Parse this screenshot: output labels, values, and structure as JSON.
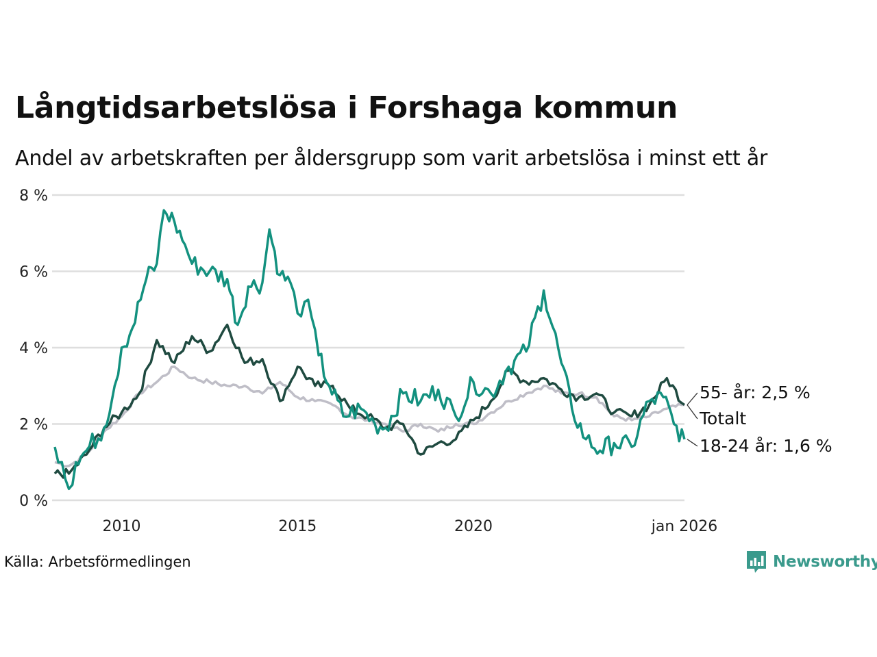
{
  "title": "Långtidsarbetslösa i Forshaga kommun",
  "subtitle": "Andel av arbetskraften per åldersgrupp som varit arbetslösa i minst ett år",
  "source": "Källa: Arbetsförmedlingen",
  "brand": {
    "name": "Newsworthy",
    "icon": "newsworthy-logo-icon"
  },
  "colors": {
    "young": "#13917f",
    "old": "#1f4a40",
    "total": "#bfbec7",
    "grid": "#dedede"
  },
  "chart_data": {
    "type": "line",
    "title": "Långtidsarbetslösa i Forshaga kommun",
    "xlabel": "",
    "ylabel": "",
    "xlim": [
      2008.1,
      2026.0
    ],
    "ylim": [
      0,
      8
    ],
    "yticks": [
      0,
      2,
      4,
      6,
      8
    ],
    "ytick_labels": [
      "0 %",
      "2 %",
      "4 %",
      "6 %",
      "8 %"
    ],
    "xticks": [
      2010,
      2015,
      2020,
      2026.0
    ],
    "xtick_labels": [
      "2010",
      "2015",
      "2020",
      "jan 2026"
    ],
    "grid": true,
    "series": [
      {
        "name": "Totalt",
        "label": "Totalt",
        "key": "total",
        "x": [
          2008.1,
          2008.5,
          2009.0,
          2009.5,
          2010.0,
          2010.5,
          2011.0,
          2011.5,
          2012.0,
          2012.5,
          2013.0,
          2013.5,
          2014.0,
          2014.5,
          2015.0,
          2015.5,
          2016.0,
          2016.5,
          2017.0,
          2017.5,
          2018.0,
          2018.5,
          2019.0,
          2019.5,
          2020.0,
          2020.5,
          2021.0,
          2021.5,
          2022.0,
          2022.5,
          2023.0,
          2023.5,
          2024.0,
          2024.5,
          2025.0,
          2025.5,
          2026.0
        ],
        "values": [
          1.0,
          0.9,
          1.2,
          1.8,
          2.2,
          2.8,
          3.1,
          3.5,
          3.2,
          3.1,
          3.0,
          3.0,
          2.8,
          3.1,
          2.7,
          2.6,
          2.5,
          2.2,
          2.1,
          2.0,
          1.8,
          2.0,
          1.8,
          2.0,
          2.0,
          2.3,
          2.6,
          2.8,
          3.0,
          2.8,
          2.8,
          2.7,
          2.2,
          2.1,
          2.2,
          2.4,
          2.5
        ]
      },
      {
        "name": "55- år",
        "label": "55- år: 2,5 %",
        "key": "old",
        "x": [
          2008.1,
          2008.5,
          2009.0,
          2009.5,
          2010.0,
          2010.5,
          2011.0,
          2011.5,
          2012.0,
          2012.5,
          2013.0,
          2013.5,
          2014.0,
          2014.5,
          2015.0,
          2015.5,
          2016.0,
          2016.5,
          2017.0,
          2017.5,
          2018.0,
          2018.5,
          2019.0,
          2019.5,
          2020.0,
          2020.5,
          2021.0,
          2021.5,
          2022.0,
          2022.5,
          2023.0,
          2023.5,
          2024.0,
          2024.5,
          2025.0,
          2025.5,
          2026.0
        ],
        "values": [
          0.7,
          0.7,
          1.2,
          1.9,
          2.3,
          2.8,
          4.2,
          3.6,
          4.3,
          3.9,
          4.6,
          3.6,
          3.7,
          2.6,
          3.5,
          3.0,
          3.0,
          2.4,
          2.2,
          1.9,
          2.0,
          1.2,
          1.5,
          1.6,
          2.1,
          2.6,
          3.4,
          3.1,
          3.2,
          2.9,
          2.7,
          2.8,
          2.3,
          2.2,
          2.5,
          3.2,
          2.5
        ]
      },
      {
        "name": "18-24 år",
        "label": "18-24 år: 1,6 %",
        "key": "young",
        "x": [
          2008.1,
          2008.3,
          2008.5,
          2008.7,
          2009.0,
          2009.5,
          2009.8,
          2010.0,
          2010.3,
          2010.7,
          2011.0,
          2011.2,
          2011.5,
          2011.8,
          2012.0,
          2012.5,
          2013.0,
          2013.3,
          2013.6,
          2014.0,
          2014.2,
          2014.5,
          2014.8,
          2015.0,
          2015.2,
          2015.4,
          2015.6,
          2015.9,
          2016.3,
          2016.8,
          2017.2,
          2017.5,
          2018.0,
          2018.5,
          2019.0,
          2019.5,
          2020.0,
          2020.5,
          2021.0,
          2021.5,
          2022.0,
          2022.5,
          2022.8,
          2023.2,
          2023.6,
          2024.0,
          2024.5,
          2025.0,
          2025.4,
          2025.7,
          2026.0
        ],
        "values": [
          1.4,
          1.0,
          0.3,
          1.0,
          1.3,
          1.9,
          3.0,
          4.0,
          4.5,
          5.8,
          6.2,
          7.6,
          7.3,
          6.7,
          6.2,
          6.0,
          5.8,
          4.6,
          5.6,
          5.7,
          7.1,
          5.9,
          5.7,
          4.9,
          5.2,
          4.8,
          3.8,
          3.0,
          2.2,
          2.4,
          2.0,
          1.9,
          2.8,
          2.6,
          2.9,
          2.2,
          3.1,
          2.8,
          3.5,
          3.9,
          5.5,
          3.6,
          2.4,
          1.6,
          1.3,
          1.5,
          1.4,
          2.6,
          2.7,
          2.0,
          1.6
        ]
      }
    ]
  }
}
